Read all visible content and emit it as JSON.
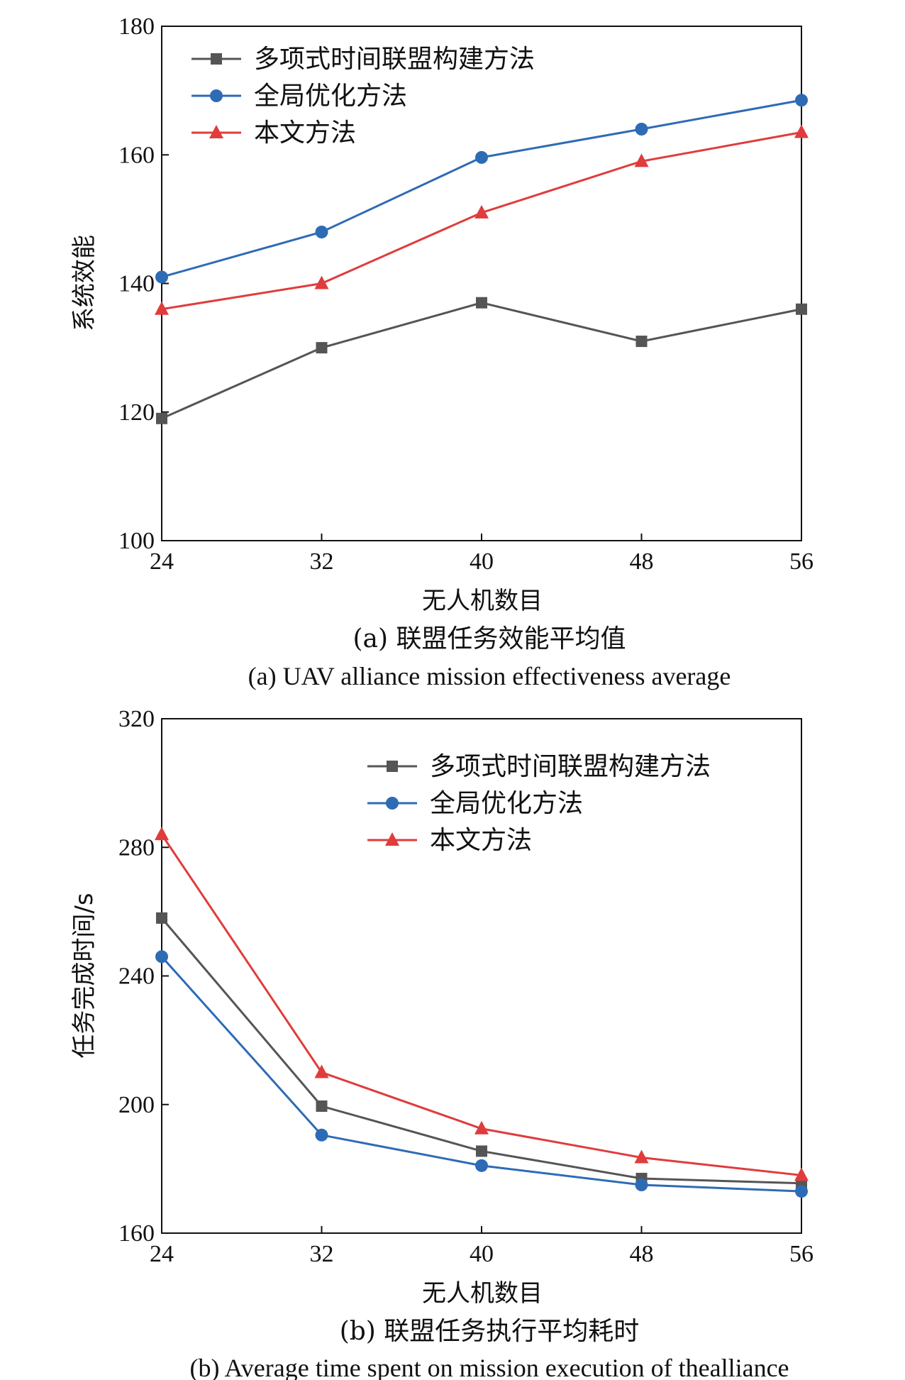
{
  "chart_data": [
    {
      "type": "line",
      "x": [
        24,
        32,
        40,
        48,
        56
      ],
      "xlabel": "无人机数目",
      "ylabel": "系统效能",
      "ylim": [
        100,
        180
      ],
      "yticks": [
        100,
        120,
        140,
        160,
        180
      ],
      "xticks": [
        24,
        32,
        40,
        48,
        56
      ],
      "legend_position": "top-left",
      "grid": false,
      "caption_cn": "(a) 联盟任务效能平均值",
      "caption_en": "(a) UAV alliance mission effectiveness average",
      "series": [
        {
          "name": "多项式时间联盟构建方法",
          "color": "#555555",
          "marker": "square",
          "values": [
            119,
            130,
            137,
            131,
            136
          ]
        },
        {
          "name": "全局优化方法",
          "color": "#2e6bb5",
          "marker": "circle",
          "values": [
            141,
            148,
            159.6,
            164,
            168.5
          ]
        },
        {
          "name": "本文方法",
          "color": "#e03c3c",
          "marker": "triangle",
          "values": [
            136,
            140,
            151,
            159,
            163.5
          ]
        }
      ]
    },
    {
      "type": "line",
      "x": [
        24,
        32,
        40,
        48,
        56
      ],
      "xlabel": "无人机数目",
      "ylabel": "任务完成时间/s",
      "ylim": [
        160,
        320
      ],
      "yticks": [
        160,
        200,
        240,
        280,
        320
      ],
      "xticks": [
        24,
        32,
        40,
        48,
        56
      ],
      "legend_position": "top-right",
      "grid": false,
      "caption_cn": "(b) 联盟任务执行平均耗时",
      "caption_en": "(b) Average time spent on mission execution of thealliance",
      "series": [
        {
          "name": "多项式时间联盟构建方法",
          "color": "#555555",
          "marker": "square",
          "values": [
            258,
            199.5,
            185.5,
            177,
            175.5
          ]
        },
        {
          "name": "全局优化方法",
          "color": "#2e6bb5",
          "marker": "circle",
          "values": [
            246,
            190.5,
            181,
            175,
            173
          ]
        },
        {
          "name": "本文方法",
          "color": "#e03c3c",
          "marker": "triangle",
          "values": [
            284,
            210,
            192.5,
            183.5,
            178
          ]
        }
      ]
    }
  ]
}
